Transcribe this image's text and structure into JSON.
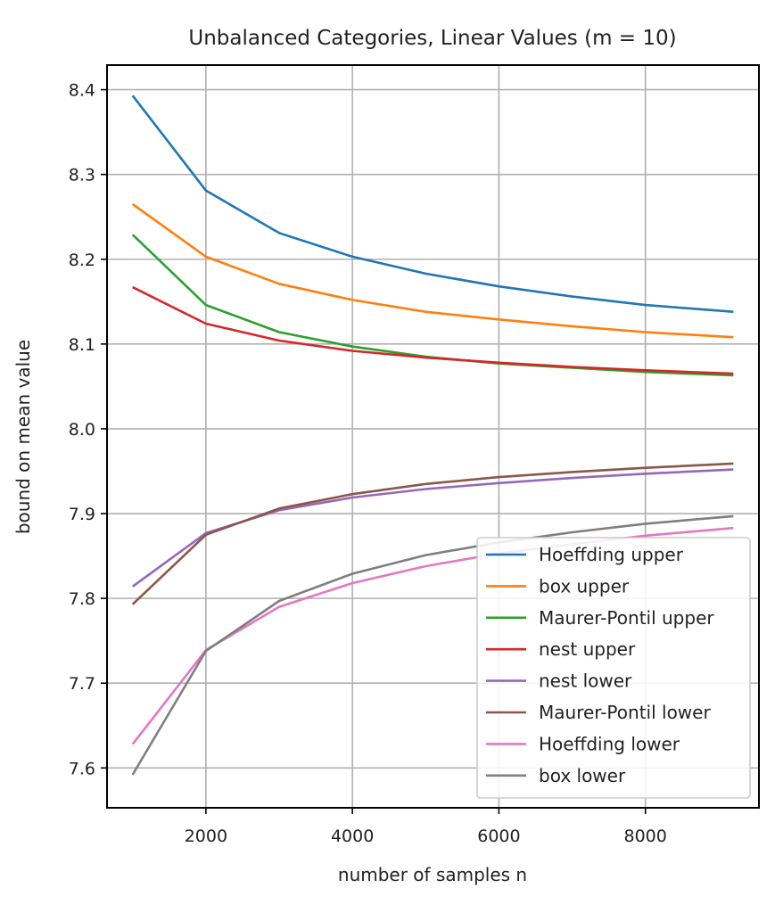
{
  "chart_data": {
    "type": "line",
    "title": "Unbalanced Categories, Linear Values (m = 10)",
    "xlabel": "number of samples n",
    "ylabel": "bound on mean value",
    "xlim": [
      650,
      9550
    ],
    "ylim": [
      7.553,
      8.429
    ],
    "xticks": [
      2000,
      4000,
      6000,
      8000
    ],
    "yticks": [
      7.6,
      7.7,
      7.8,
      7.9,
      8.0,
      8.1,
      8.2,
      8.3,
      8.4
    ],
    "grid": true,
    "legend_position": "lower-right",
    "x": [
      1000,
      2000,
      3000,
      4000,
      5000,
      6000,
      7000,
      8000,
      9200
    ],
    "series": [
      {
        "name": "Hoeffding upper",
        "color": "#1f77b4",
        "values": [
          8.393,
          8.281,
          8.231,
          8.203,
          8.183,
          8.168,
          8.156,
          8.146,
          8.138
        ]
      },
      {
        "name": "box upper",
        "color": "#ff7f0e",
        "values": [
          8.265,
          8.203,
          8.171,
          8.152,
          8.138,
          8.129,
          8.121,
          8.114,
          8.108
        ]
      },
      {
        "name": "Maurer-Pontil upper",
        "color": "#2ca02c",
        "values": [
          8.229,
          8.146,
          8.114,
          8.097,
          8.085,
          8.077,
          8.072,
          8.067,
          8.063
        ]
      },
      {
        "name": "nest upper",
        "color": "#d62728",
        "values": [
          8.167,
          8.124,
          8.104,
          8.092,
          8.084,
          8.078,
          8.073,
          8.069,
          8.065
        ]
      },
      {
        "name": "nest lower",
        "color": "#9467bd",
        "values": [
          7.814,
          7.877,
          7.904,
          7.919,
          7.929,
          7.936,
          7.942,
          7.947,
          7.952
        ]
      },
      {
        "name": "Maurer-Pontil lower",
        "color": "#8c564b",
        "values": [
          7.793,
          7.875,
          7.906,
          7.923,
          7.935,
          7.943,
          7.949,
          7.954,
          7.959
        ]
      },
      {
        "name": "Hoeffding lower",
        "color": "#e377c2",
        "values": [
          7.628,
          7.739,
          7.79,
          7.818,
          7.838,
          7.853,
          7.864,
          7.874,
          7.883
        ]
      },
      {
        "name": "box lower",
        "color": "#7f7f7f",
        "values": [
          7.592,
          7.738,
          7.797,
          7.829,
          7.851,
          7.866,
          7.878,
          7.888,
          7.897
        ]
      }
    ]
  }
}
